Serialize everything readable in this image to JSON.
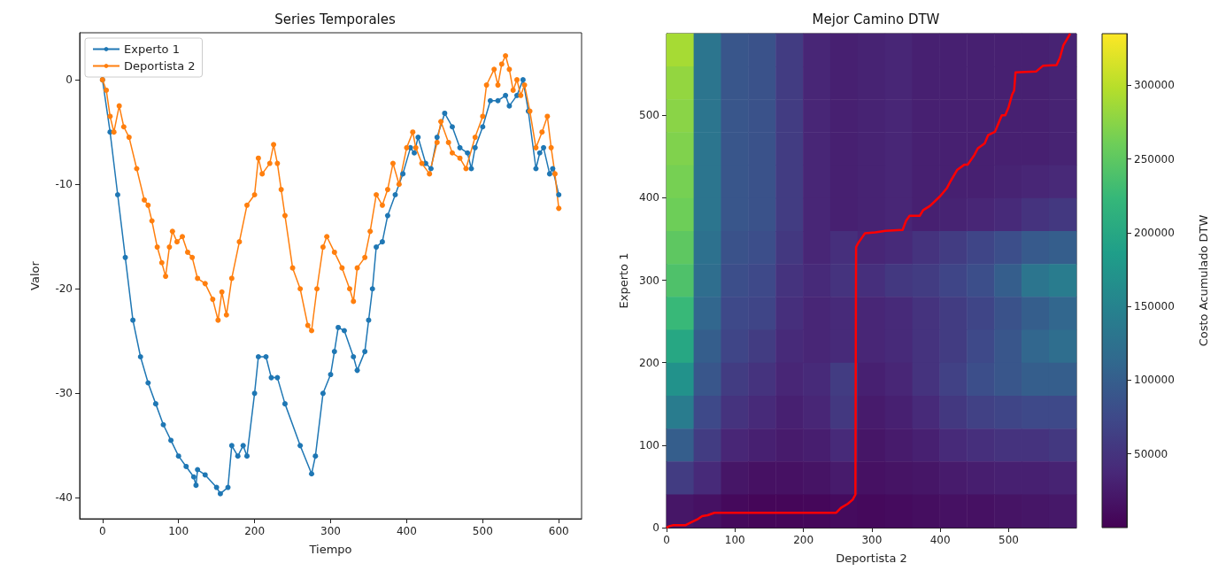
{
  "chart_data": [
    {
      "type": "line",
      "title": "Series Temporales",
      "xlabel": "Tiempo",
      "ylabel": "Valor",
      "legend": "top left",
      "marker": "circle",
      "xlim": [
        -30,
        630
      ],
      "xticks": [
        0,
        100,
        200,
        300,
        400,
        500,
        600
      ],
      "ylim": [
        -42,
        4.5
      ],
      "yticks": [
        -40,
        -30,
        -20,
        -10,
        0
      ],
      "series": [
        {
          "name": "Experto 1",
          "color": "#1f77b4",
          "x": [
            0,
            10,
            20,
            30,
            40,
            50,
            60,
            70,
            80,
            90,
            100,
            110,
            120,
            123,
            125,
            135,
            150,
            155,
            165,
            170,
            178,
            185,
            190,
            200,
            205,
            215,
            222,
            230,
            240,
            260,
            275,
            280,
            290,
            300,
            305,
            310,
            318,
            330,
            335,
            345,
            350,
            355,
            360,
            368,
            375,
            385,
            395,
            405,
            410,
            415,
            425,
            432,
            440,
            450,
            460,
            470,
            480,
            485,
            490,
            500,
            510,
            520,
            530,
            535,
            545,
            553,
            560,
            570,
            575,
            580,
            588,
            592,
            600
          ],
          "values": [
            0,
            -5,
            -11,
            -17,
            -23,
            -26.5,
            -29,
            -31,
            -33,
            -34.5,
            -36,
            -37,
            -38,
            -38.8,
            -37.3,
            -37.8,
            -39,
            -39.6,
            -39,
            -35,
            -36,
            -35,
            -36,
            -30,
            -26.5,
            -26.5,
            -28.5,
            -28.5,
            -31,
            -35,
            -37.7,
            -36,
            -30,
            -28.2,
            -26,
            -23.7,
            -24,
            -26.5,
            -27.8,
            -26,
            -23,
            -20,
            -16,
            -15.5,
            -13,
            -11,
            -9,
            -6.5,
            -7,
            -5.5,
            -8,
            -8.5,
            -5.5,
            -3.2,
            -4.5,
            -6.5,
            -7,
            -8.5,
            -6.5,
            -4.5,
            -2,
            -2,
            -1.5,
            -2.5,
            -1.5,
            0,
            -3,
            -8.5,
            -7,
            -6.5,
            -9,
            -8.5,
            -11
          ]
        },
        {
          "name": "Deportista 2",
          "color": "#ff7f0e",
          "x": [
            0,
            5,
            10,
            15,
            22,
            28,
            35,
            45,
            55,
            60,
            65,
            72,
            78,
            83,
            88,
            92,
            98,
            105,
            112,
            118,
            125,
            135,
            145,
            152,
            157,
            163,
            170,
            180,
            190,
            200,
            205,
            210,
            220,
            225,
            230,
            235,
            240,
            250,
            260,
            270,
            275,
            282,
            290,
            295,
            305,
            315,
            325,
            330,
            335,
            345,
            352,
            360,
            368,
            375,
            382,
            390,
            400,
            408,
            412,
            420,
            430,
            440,
            445,
            455,
            460,
            470,
            478,
            490,
            500,
            505,
            515,
            520,
            525,
            530,
            535,
            540,
            545,
            550,
            555,
            562,
            570,
            578,
            585,
            590,
            595,
            600
          ],
          "values": [
            0,
            -1,
            -3.5,
            -5,
            -2.5,
            -4.5,
            -5.5,
            -8.5,
            -11.5,
            -12,
            -13.5,
            -16,
            -17.5,
            -18.8,
            -16,
            -14.5,
            -15.5,
            -15,
            -16.5,
            -17,
            -19,
            -19.5,
            -21,
            -23,
            -20.3,
            -22.5,
            -19,
            -15.5,
            -12,
            -11,
            -7.5,
            -9,
            -8,
            -6.2,
            -8,
            -10.5,
            -13,
            -18,
            -20,
            -23.5,
            -24,
            -20,
            -16,
            -15,
            -16.5,
            -18,
            -20,
            -21.2,
            -18,
            -17,
            -14.5,
            -11,
            -12,
            -10.5,
            -8,
            -10,
            -6.5,
            -5,
            -6.5,
            -8,
            -9,
            -6,
            -4,
            -6,
            -7,
            -7.5,
            -8.5,
            -5.5,
            -3.5,
            -0.5,
            1,
            -0.5,
            1.5,
            2.3,
            1,
            -1,
            0,
            -1.5,
            -0.5,
            -3,
            -6.5,
            -5,
            -3.5,
            -6.5,
            -9,
            -12.3
          ]
        }
      ]
    },
    {
      "type": "heatmap",
      "title": "Mejor Camino DTW",
      "xlabel": "Deportista 2",
      "ylabel": "Experto 1",
      "clabel": "Costo Acumulado DTW",
      "xlim": [
        0,
        599
      ],
      "xticks": [
        0,
        100,
        200,
        300,
        400,
        500
      ],
      "ylim": [
        0,
        599
      ],
      "yticks": [
        0,
        100,
        200,
        300,
        400,
        500
      ],
      "clim": [
        0,
        335000
      ],
      "cticks": [
        50000,
        100000,
        150000,
        200000,
        250000,
        300000
      ],
      "cells": [
        [
          290000,
          130000,
          90000,
          85000,
          60000,
          35000,
          30000,
          32000,
          35000,
          30000,
          30000,
          30000,
          30000,
          30000,
          32000
        ],
        [
          280000,
          130000,
          90000,
          85000,
          60000,
          35000,
          30000,
          32000,
          35000,
          30000,
          30000,
          30000,
          30000,
          30000,
          32000
        ],
        [
          275000,
          130000,
          90000,
          85000,
          60000,
          35000,
          30000,
          32000,
          35000,
          30000,
          30000,
          30000,
          30000,
          30000,
          32000
        ],
        [
          270000,
          130000,
          90000,
          85000,
          60000,
          35000,
          30000,
          32000,
          35000,
          30000,
          30000,
          30000,
          30000,
          30000,
          32000
        ],
        [
          265000,
          130000,
          90000,
          85000,
          60000,
          35000,
          30000,
          32000,
          35000,
          30000,
          30000,
          30000,
          32000,
          35000,
          38000
        ],
        [
          260000,
          130000,
          90000,
          85000,
          60000,
          35000,
          30000,
          32000,
          35000,
          30000,
          32000,
          35000,
          40000,
          50000,
          55000
        ],
        [
          250000,
          125000,
          85000,
          80000,
          55000,
          35000,
          45000,
          35000,
          40000,
          50000,
          60000,
          70000,
          80000,
          95000,
          100000
        ],
        [
          240000,
          120000,
          80000,
          75000,
          50000,
          40000,
          50000,
          45000,
          55000,
          60000,
          70000,
          80000,
          100000,
          130000,
          140000
        ],
        [
          225000,
          110000,
          75000,
          70000,
          45000,
          35000,
          40000,
          35000,
          40000,
          50000,
          60000,
          70000,
          85000,
          100000,
          110000
        ],
        [
          200000,
          100000,
          70000,
          60000,
          40000,
          35000,
          40000,
          35000,
          40000,
          50000,
          60000,
          75000,
          90000,
          110000,
          120000
        ],
        [
          170000,
          90000,
          60000,
          50000,
          35000,
          40000,
          60000,
          30000,
          35000,
          50000,
          65000,
          80000,
          90000,
          100000,
          100000
        ],
        [
          140000,
          75000,
          50000,
          40000,
          30000,
          35000,
          55000,
          25000,
          30000,
          40000,
          55000,
          65000,
          70000,
          75000,
          75000
        ],
        [
          100000,
          60000,
          35000,
          30000,
          25000,
          28000,
          40000,
          20000,
          25000,
          30000,
          40000,
          45000,
          50000,
          50000,
          55000
        ],
        [
          60000,
          40000,
          20000,
          15000,
          15000,
          18000,
          25000,
          15000,
          18000,
          20000,
          25000,
          28000,
          30000,
          30000,
          32000
        ],
        [
          20000,
          15000,
          8000,
          5000,
          5000,
          6000,
          10000,
          8000,
          10000,
          12000,
          15000,
          15000,
          18000,
          20000,
          22000
        ]
      ],
      "series": [
        {
          "type": "line",
          "color": "#ff0000",
          "x": [
            0,
            5,
            10,
            28,
            35,
            45,
            52,
            60,
            70,
            248,
            255,
            265,
            272,
            276,
            277,
            280,
            290,
            305,
            320,
            345,
            350,
            355,
            370,
            375,
            385,
            400,
            410,
            415,
            425,
            435,
            440,
            450,
            455,
            465,
            470,
            480,
            485,
            490,
            495,
            500,
            505,
            508,
            510,
            540,
            550,
            570,
            575,
            580,
            585,
            590
          ],
          "values": [
            0,
            2,
            3,
            3,
            6,
            10,
            14,
            15,
            18,
            18,
            24,
            29,
            34,
            40,
            340,
            345,
            357,
            358,
            360,
            361,
            372,
            378,
            378,
            385,
            390,
            402,
            412,
            420,
            434,
            440,
            440,
            452,
            460,
            466,
            476,
            480,
            490,
            500,
            500,
            510,
            525,
            530,
            552,
            553,
            560,
            561,
            570,
            585,
            592,
            599
          ]
        }
      ]
    }
  ]
}
